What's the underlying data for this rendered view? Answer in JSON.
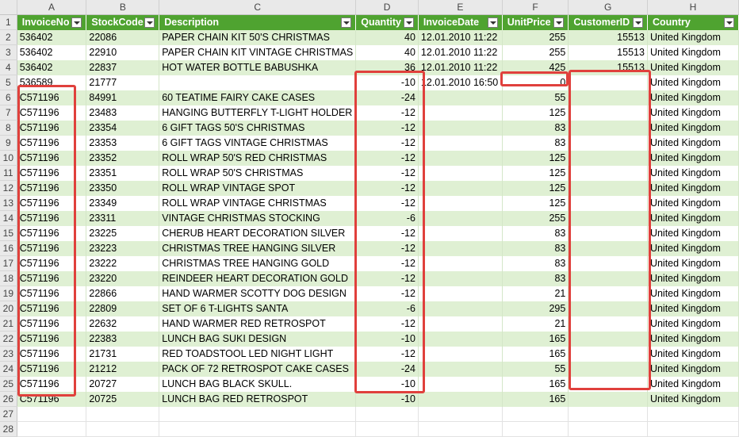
{
  "columns": [
    "A",
    "B",
    "C",
    "D",
    "E",
    "F",
    "G",
    "H"
  ],
  "headers": [
    "InvoiceNo",
    "StockCode",
    "Description",
    "Quantity",
    "InvoiceDate",
    "UnitPrice",
    "CustomerID",
    "Country"
  ],
  "rows": [
    {
      "num": "2",
      "cells": [
        "536402",
        "22086",
        "PAPER CHAIN KIT 50'S CHRISTMAS",
        "40",
        "12.01.2010 11:22",
        "255",
        "15513",
        "United Kingdom"
      ]
    },
    {
      "num": "3",
      "cells": [
        "536402",
        "22910",
        "PAPER CHAIN KIT VINTAGE CHRISTMAS",
        "40",
        "12.01.2010 11:22",
        "255",
        "15513",
        "United Kingdom"
      ]
    },
    {
      "num": "4",
      "cells": [
        "536402",
        "22837",
        "HOT WATER BOTTLE BABUSHKA",
        "36",
        "12.01.2010 11:22",
        "425",
        "15513",
        "United Kingdom"
      ]
    },
    {
      "num": "5",
      "cells": [
        "536589",
        "21777",
        "",
        "-10",
        "12.01.2010 16:50",
        "0",
        "",
        "United Kingdom"
      ]
    },
    {
      "num": "6",
      "cells": [
        "C571196",
        "84991",
        "60 TEATIME FAIRY CAKE CASES",
        "-24",
        "",
        "55",
        "",
        "United Kingdom"
      ]
    },
    {
      "num": "7",
      "cells": [
        "C571196",
        "23483",
        "HANGING  BUTTERFLY T-LIGHT HOLDER",
        "-12",
        "",
        "125",
        "",
        "United Kingdom"
      ]
    },
    {
      "num": "8",
      "cells": [
        "C571196",
        "23354",
        "6 GIFT TAGS 50'S CHRISTMAS",
        "-12",
        "",
        "83",
        "",
        "United Kingdom"
      ]
    },
    {
      "num": "9",
      "cells": [
        "C571196",
        "23353",
        "6 GIFT TAGS VINTAGE CHRISTMAS",
        "-12",
        "",
        "83",
        "",
        "United Kingdom"
      ]
    },
    {
      "num": "10",
      "cells": [
        "C571196",
        "23352",
        "ROLL WRAP 50'S RED CHRISTMAS",
        "-12",
        "",
        "125",
        "",
        "United Kingdom"
      ]
    },
    {
      "num": "11",
      "cells": [
        "C571196",
        "23351",
        "ROLL WRAP 50'S CHRISTMAS",
        "-12",
        "",
        "125",
        "",
        "United Kingdom"
      ]
    },
    {
      "num": "12",
      "cells": [
        "C571196",
        "23350",
        "ROLL WRAP VINTAGE SPOT",
        "-12",
        "",
        "125",
        "",
        "United Kingdom"
      ]
    },
    {
      "num": "13",
      "cells": [
        "C571196",
        "23349",
        "ROLL WRAP VINTAGE CHRISTMAS",
        "-12",
        "",
        "125",
        "",
        "United Kingdom"
      ]
    },
    {
      "num": "14",
      "cells": [
        "C571196",
        "23311",
        "VINTAGE CHRISTMAS STOCKING",
        "-6",
        "",
        "255",
        "",
        "United Kingdom"
      ]
    },
    {
      "num": "15",
      "cells": [
        "C571196",
        "23225",
        "CHERUB HEART DECORATION SILVER",
        "-12",
        "",
        "83",
        "",
        "United Kingdom"
      ]
    },
    {
      "num": "16",
      "cells": [
        "C571196",
        "23223",
        "CHRISTMAS TREE HANGING SILVER",
        "-12",
        "",
        "83",
        "",
        "United Kingdom"
      ]
    },
    {
      "num": "17",
      "cells": [
        "C571196",
        "23222",
        "CHRISTMAS TREE HANGING GOLD",
        "-12",
        "",
        "83",
        "",
        "United Kingdom"
      ]
    },
    {
      "num": "18",
      "cells": [
        "C571196",
        "23220",
        "REINDEER HEART DECORATION GOLD",
        "-12",
        "",
        "83",
        "",
        "United Kingdom"
      ]
    },
    {
      "num": "19",
      "cells": [
        "C571196",
        "22866",
        "HAND WARMER SCOTTY DOG DESIGN",
        "-12",
        "",
        "21",
        "",
        "United Kingdom"
      ]
    },
    {
      "num": "20",
      "cells": [
        "C571196",
        "22809",
        "SET OF 6 T-LIGHTS SANTA",
        "-6",
        "",
        "295",
        "",
        "United Kingdom"
      ]
    },
    {
      "num": "21",
      "cells": [
        "C571196",
        "22632",
        "HAND WARMER RED RETROSPOT",
        "-12",
        "",
        "21",
        "",
        "United Kingdom"
      ]
    },
    {
      "num": "22",
      "cells": [
        "C571196",
        "22383",
        "LUNCH BAG SUKI DESIGN",
        "-10",
        "",
        "165",
        "",
        "United Kingdom"
      ]
    },
    {
      "num": "23",
      "cells": [
        "C571196",
        "21731",
        "RED TOADSTOOL LED NIGHT LIGHT",
        "-12",
        "",
        "165",
        "",
        "United Kingdom"
      ]
    },
    {
      "num": "24",
      "cells": [
        "C571196",
        "21212",
        "PACK OF 72 RETROSPOT CAKE CASES",
        "-24",
        "",
        "55",
        "",
        "United Kingdom"
      ]
    },
    {
      "num": "25",
      "cells": [
        "C571196",
        "20727",
        "LUNCH BAG  BLACK SKULL.",
        "-10",
        "",
        "165",
        "",
        "United Kingdom"
      ]
    },
    {
      "num": "26",
      "cells": [
        "C571196",
        "20725",
        "LUNCH BAG RED RETROSPOT",
        "-10",
        "",
        "165",
        "",
        "United Kingdom"
      ]
    }
  ],
  "blank_rows": [
    "27",
    "28"
  ],
  "header_row_num": "1",
  "colors": {
    "header_bg": "#4fa330",
    "band": "#dff0d3",
    "highlight": "#e0403c"
  }
}
